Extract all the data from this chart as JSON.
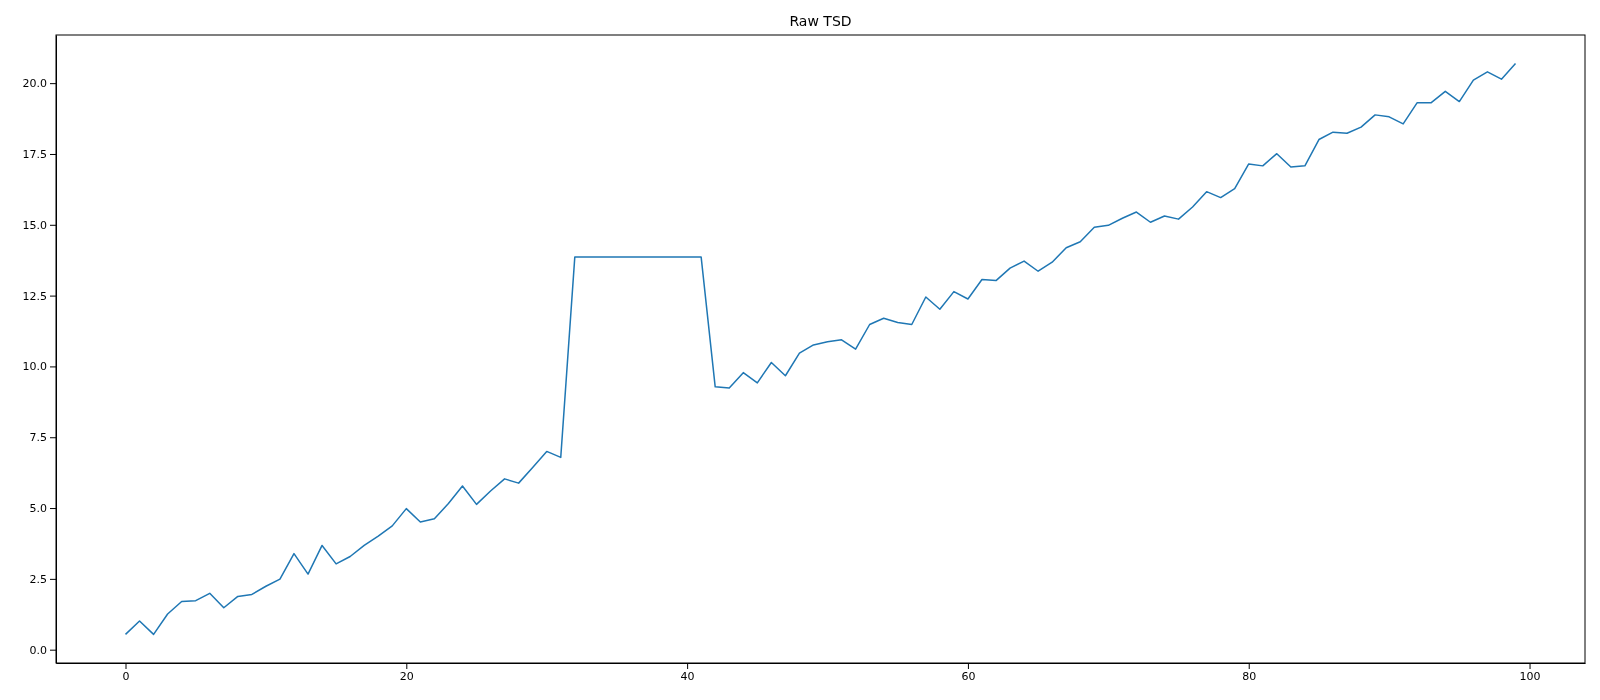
{
  "chart_data": {
    "type": "line",
    "title": "Raw TSD",
    "x": [
      0,
      1,
      2,
      3,
      4,
      5,
      6,
      7,
      8,
      9,
      10,
      11,
      12,
      13,
      14,
      15,
      16,
      17,
      18,
      19,
      20,
      21,
      22,
      23,
      24,
      25,
      26,
      27,
      28,
      29,
      30,
      31,
      32,
      33,
      34,
      35,
      36,
      37,
      38,
      39,
      40,
      41,
      42,
      43,
      44,
      45,
      46,
      47,
      48,
      49,
      50,
      51,
      52,
      53,
      54,
      55,
      56,
      57,
      58,
      59,
      60,
      61,
      62,
      63,
      64,
      65,
      66,
      67,
      68,
      69,
      70,
      71,
      72,
      73,
      74,
      75,
      76,
      77,
      78,
      79,
      80,
      81,
      82,
      83,
      84,
      85,
      86,
      87,
      88,
      89,
      90,
      91,
      92,
      93,
      94,
      95,
      96,
      97,
      98,
      99
    ],
    "series": [
      {
        "color": "#1f77b4",
        "values": [
          0.54,
          1.01,
          0.54,
          1.26,
          1.7,
          1.73,
          1.99,
          1.48,
          1.88,
          1.95,
          2.24,
          2.49,
          3.39,
          2.67,
          3.68,
          3.03,
          3.29,
          3.68,
          4.01,
          4.37,
          4.98,
          4.51,
          4.62,
          5.16,
          5.78,
          5.13,
          5.6,
          6.03,
          5.88,
          6.43,
          7.0,
          6.79,
          13.86,
          13.86,
          13.86,
          13.86,
          13.86,
          13.86,
          13.86,
          13.86,
          13.86,
          13.86,
          9.28,
          9.24,
          9.78,
          9.42,
          10.14,
          9.67,
          10.47,
          10.76,
          10.87,
          10.94,
          10.61,
          11.48,
          11.7,
          11.55,
          11.48,
          12.45,
          12.02,
          12.64,
          12.38,
          13.07,
          13.03,
          13.47,
          13.72,
          13.36,
          13.68,
          14.19,
          14.4,
          14.91,
          14.98,
          15.23,
          15.45,
          15.09,
          15.31,
          15.2,
          15.63,
          16.17,
          15.96,
          16.28,
          17.15,
          17.08,
          17.51,
          17.04,
          17.08,
          18.01,
          18.27,
          18.23,
          18.45,
          18.88,
          18.81,
          18.56,
          19.31,
          19.31,
          19.71,
          19.35,
          20.11,
          20.4,
          20.14,
          20.69
        ]
      }
    ],
    "xlim": [
      -4.95,
      103.95
    ],
    "xticks": [
      0,
      20,
      40,
      60,
      80,
      100
    ],
    "ylim": [
      -0.47,
      21.7
    ],
    "yticks": [
      {
        "value": 0,
        "label": "0.0"
      },
      {
        "value": 2.5,
        "label": "2.5"
      },
      {
        "value": 5,
        "label": "5.0"
      },
      {
        "value": 7.5,
        "label": "7.5"
      },
      {
        "value": 10,
        "label": "10.0"
      },
      {
        "value": 12.5,
        "label": "12.5"
      },
      {
        "value": 15,
        "label": "15.0"
      },
      {
        "value": 17.5,
        "label": "17.5"
      },
      {
        "value": 20,
        "label": "20.0"
      }
    ],
    "marker": "none",
    "line_style": "solid"
  }
}
